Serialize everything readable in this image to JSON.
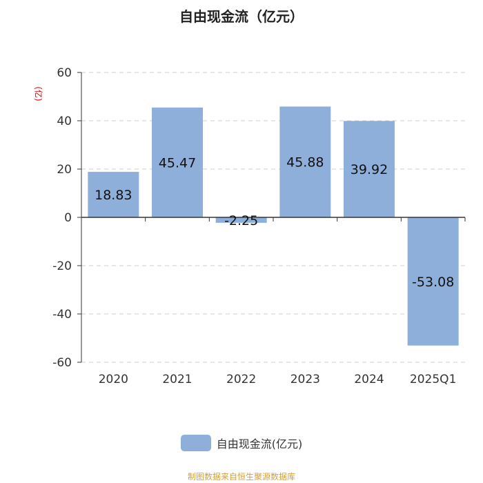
{
  "chart_data": {
    "type": "bar",
    "title": "自由现金流（亿元）",
    "unit_label": "(亿)",
    "categories": [
      "2020",
      "2021",
      "2022",
      "2023",
      "2024",
      "2025Q1"
    ],
    "series": [
      {
        "name": "自由现金流(亿元)",
        "values": [
          18.83,
          45.47,
          -2.25,
          45.88,
          39.92,
          -53.08
        ]
      }
    ],
    "value_labels": [
      "18.83",
      "45.47",
      "-2.25",
      "45.88",
      "39.92",
      "-53.08"
    ],
    "ylim": [
      -60,
      60
    ],
    "yticks": [
      -60,
      -40,
      -20,
      0,
      20,
      40,
      60
    ],
    "grid": true,
    "legend_position": "bottom"
  },
  "colors": {
    "bar": "#8fafdb",
    "grid": "#cccccc",
    "axis": "#333333",
    "unit": "#e00000",
    "source": "#d4a03c"
  },
  "source_text": "制图数据来自恒生聚源数据库"
}
